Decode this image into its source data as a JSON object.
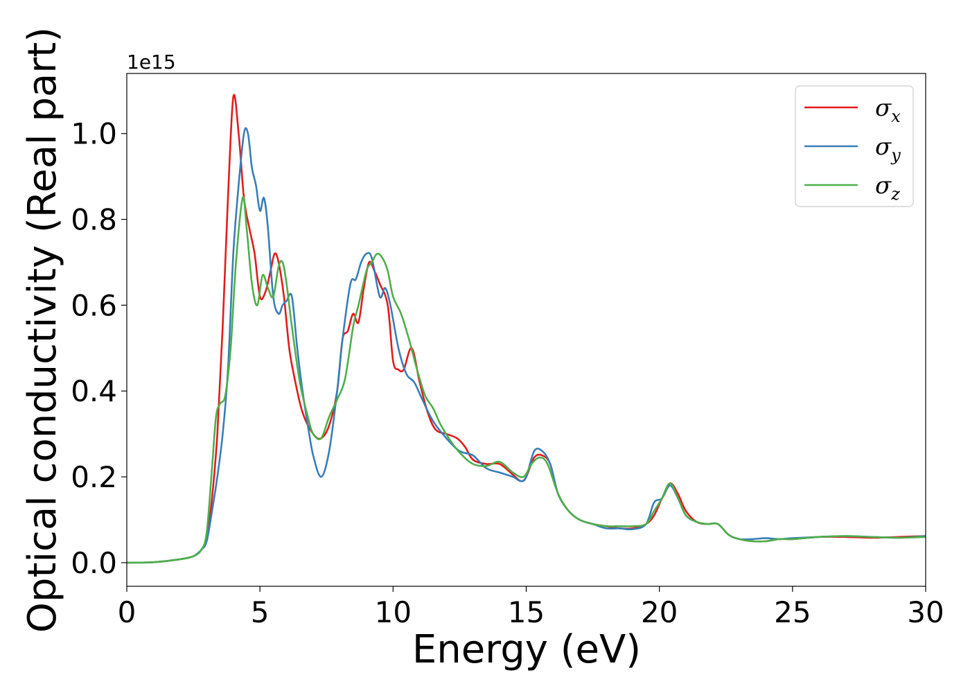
{
  "chart_data": {
    "type": "line",
    "xlabel": "Energy (eV)",
    "ylabel": "Optical conductivity (Real part)",
    "y_offset_text": "1e15",
    "xlim": [
      0,
      30
    ],
    "ylim": [
      -0.055,
      1.14
    ],
    "x_ticks": [
      0,
      5,
      10,
      15,
      20,
      25,
      30
    ],
    "x_tick_labels": [
      "0",
      "5",
      "10",
      "15",
      "20",
      "25",
      "30"
    ],
    "y_ticks": [
      0.0,
      0.2,
      0.4,
      0.6,
      0.8,
      1.0
    ],
    "y_tick_labels": [
      "0.0",
      "0.2",
      "0.4",
      "0.6",
      "0.8",
      "1.0"
    ],
    "grid": false,
    "legend_position": "top-right",
    "series": [
      {
        "name": "σx",
        "base": "σ",
        "sub": "x",
        "color": "#e41a1c",
        "points": [
          [
            0,
            0
          ],
          [
            1,
            0.001
          ],
          [
            2,
            0.008
          ],
          [
            2.5,
            0.015
          ],
          [
            2.8,
            0.03
          ],
          [
            3.0,
            0.06
          ],
          [
            3.2,
            0.15
          ],
          [
            3.4,
            0.3
          ],
          [
            3.6,
            0.55
          ],
          [
            3.8,
            0.85
          ],
          [
            4.0,
            1.085
          ],
          [
            4.2,
            1.0
          ],
          [
            4.4,
            0.85
          ],
          [
            4.6,
            0.78
          ],
          [
            4.8,
            0.72
          ],
          [
            5.0,
            0.62
          ],
          [
            5.2,
            0.63
          ],
          [
            5.4,
            0.68
          ],
          [
            5.55,
            0.72
          ],
          [
            5.7,
            0.7
          ],
          [
            5.9,
            0.62
          ],
          [
            6.1,
            0.5
          ],
          [
            6.3,
            0.43
          ],
          [
            6.6,
            0.35
          ],
          [
            7.0,
            0.3
          ],
          [
            7.3,
            0.29
          ],
          [
            7.6,
            0.32
          ],
          [
            7.9,
            0.4
          ],
          [
            8.1,
            0.52
          ],
          [
            8.3,
            0.54
          ],
          [
            8.5,
            0.58
          ],
          [
            8.7,
            0.56
          ],
          [
            8.9,
            0.64
          ],
          [
            9.1,
            0.7
          ],
          [
            9.3,
            0.68
          ],
          [
            9.5,
            0.65
          ],
          [
            9.8,
            0.6
          ],
          [
            10.0,
            0.47
          ],
          [
            10.2,
            0.45
          ],
          [
            10.4,
            0.45
          ],
          [
            10.7,
            0.5
          ],
          [
            11.0,
            0.42
          ],
          [
            11.3,
            0.35
          ],
          [
            11.6,
            0.31
          ],
          [
            12.0,
            0.3
          ],
          [
            12.4,
            0.29
          ],
          [
            12.7,
            0.27
          ],
          [
            13.0,
            0.24
          ],
          [
            13.5,
            0.23
          ],
          [
            14.0,
            0.23
          ],
          [
            14.5,
            0.205
          ],
          [
            14.8,
            0.19
          ],
          [
            15.0,
            0.2
          ],
          [
            15.3,
            0.245
          ],
          [
            15.6,
            0.25
          ],
          [
            15.9,
            0.23
          ],
          [
            16.2,
            0.16
          ],
          [
            16.6,
            0.12
          ],
          [
            17.0,
            0.1
          ],
          [
            17.5,
            0.09
          ],
          [
            18.0,
            0.085
          ],
          [
            18.5,
            0.08
          ],
          [
            19.0,
            0.08
          ],
          [
            19.5,
            0.09
          ],
          [
            19.8,
            0.11
          ],
          [
            20.1,
            0.15
          ],
          [
            20.4,
            0.185
          ],
          [
            20.7,
            0.16
          ],
          [
            21.0,
            0.12
          ],
          [
            21.4,
            0.095
          ],
          [
            21.8,
            0.09
          ],
          [
            22.2,
            0.09
          ],
          [
            22.6,
            0.065
          ],
          [
            23.0,
            0.055
          ],
          [
            23.5,
            0.05
          ],
          [
            24.0,
            0.05
          ],
          [
            24.5,
            0.055
          ],
          [
            25.0,
            0.055
          ],
          [
            26.0,
            0.06
          ],
          [
            27.0,
            0.06
          ],
          [
            28.0,
            0.058
          ],
          [
            29.0,
            0.06
          ],
          [
            30.0,
            0.062
          ]
        ]
      },
      {
        "name": "σy",
        "base": "σ",
        "sub": "y",
        "color": "#377eb8",
        "points": [
          [
            0,
            0
          ],
          [
            1,
            0.001
          ],
          [
            2,
            0.008
          ],
          [
            2.5,
            0.015
          ],
          [
            2.8,
            0.03
          ],
          [
            3.0,
            0.05
          ],
          [
            3.2,
            0.12
          ],
          [
            3.4,
            0.2
          ],
          [
            3.6,
            0.3
          ],
          [
            3.8,
            0.45
          ],
          [
            4.0,
            0.72
          ],
          [
            4.2,
            0.88
          ],
          [
            4.4,
            1.0
          ],
          [
            4.55,
            1.0
          ],
          [
            4.7,
            0.92
          ],
          [
            4.85,
            0.88
          ],
          [
            5.0,
            0.82
          ],
          [
            5.15,
            0.85
          ],
          [
            5.3,
            0.78
          ],
          [
            5.5,
            0.62
          ],
          [
            5.7,
            0.58
          ],
          [
            5.85,
            0.6
          ],
          [
            6.0,
            0.61
          ],
          [
            6.2,
            0.62
          ],
          [
            6.4,
            0.5
          ],
          [
            6.6,
            0.4
          ],
          [
            6.8,
            0.32
          ],
          [
            7.0,
            0.25
          ],
          [
            7.3,
            0.2
          ],
          [
            7.6,
            0.26
          ],
          [
            7.9,
            0.4
          ],
          [
            8.1,
            0.52
          ],
          [
            8.4,
            0.65
          ],
          [
            8.6,
            0.66
          ],
          [
            8.8,
            0.7
          ],
          [
            9.0,
            0.72
          ],
          [
            9.2,
            0.71
          ],
          [
            9.5,
            0.62
          ],
          [
            9.7,
            0.64
          ],
          [
            9.9,
            0.6
          ],
          [
            10.2,
            0.5
          ],
          [
            10.5,
            0.44
          ],
          [
            10.8,
            0.42
          ],
          [
            11.1,
            0.38
          ],
          [
            11.5,
            0.33
          ],
          [
            12.0,
            0.29
          ],
          [
            12.5,
            0.26
          ],
          [
            13.0,
            0.25
          ],
          [
            13.5,
            0.22
          ],
          [
            14.0,
            0.21
          ],
          [
            14.5,
            0.2
          ],
          [
            14.8,
            0.19
          ],
          [
            15.0,
            0.2
          ],
          [
            15.3,
            0.26
          ],
          [
            15.6,
            0.26
          ],
          [
            15.9,
            0.23
          ],
          [
            16.2,
            0.16
          ],
          [
            16.6,
            0.12
          ],
          [
            17.0,
            0.1
          ],
          [
            17.5,
            0.09
          ],
          [
            18.0,
            0.08
          ],
          [
            18.5,
            0.08
          ],
          [
            19.0,
            0.078
          ],
          [
            19.5,
            0.09
          ],
          [
            19.8,
            0.14
          ],
          [
            20.1,
            0.15
          ],
          [
            20.4,
            0.18
          ],
          [
            20.7,
            0.15
          ],
          [
            21.0,
            0.11
          ],
          [
            21.4,
            0.095
          ],
          [
            21.8,
            0.09
          ],
          [
            22.2,
            0.09
          ],
          [
            22.6,
            0.065
          ],
          [
            23.0,
            0.055
          ],
          [
            23.5,
            0.055
          ],
          [
            24.0,
            0.057
          ],
          [
            24.5,
            0.055
          ],
          [
            25.0,
            0.057
          ],
          [
            26.0,
            0.06
          ],
          [
            27.0,
            0.062
          ],
          [
            28.0,
            0.06
          ],
          [
            29.0,
            0.058
          ],
          [
            30.0,
            0.062
          ]
        ]
      },
      {
        "name": "σz",
        "base": "σ",
        "sub": "z",
        "color": "#4daf4a",
        "points": [
          [
            0,
            0
          ],
          [
            1,
            0.001
          ],
          [
            2,
            0.008
          ],
          [
            2.5,
            0.015
          ],
          [
            2.8,
            0.03
          ],
          [
            3.0,
            0.07
          ],
          [
            3.2,
            0.22
          ],
          [
            3.35,
            0.34
          ],
          [
            3.5,
            0.37
          ],
          [
            3.7,
            0.39
          ],
          [
            3.9,
            0.5
          ],
          [
            4.1,
            0.7
          ],
          [
            4.35,
            0.85
          ],
          [
            4.5,
            0.78
          ],
          [
            4.7,
            0.65
          ],
          [
            4.9,
            0.6
          ],
          [
            5.1,
            0.67
          ],
          [
            5.3,
            0.64
          ],
          [
            5.5,
            0.62
          ],
          [
            5.7,
            0.69
          ],
          [
            5.85,
            0.7
          ],
          [
            6.0,
            0.65
          ],
          [
            6.2,
            0.55
          ],
          [
            6.5,
            0.42
          ],
          [
            6.8,
            0.34
          ],
          [
            7.0,
            0.3
          ],
          [
            7.3,
            0.29
          ],
          [
            7.6,
            0.34
          ],
          [
            7.9,
            0.38
          ],
          [
            8.2,
            0.43
          ],
          [
            8.5,
            0.55
          ],
          [
            8.7,
            0.6
          ],
          [
            9.0,
            0.68
          ],
          [
            9.2,
            0.7
          ],
          [
            9.4,
            0.72
          ],
          [
            9.6,
            0.71
          ],
          [
            9.8,
            0.68
          ],
          [
            10.0,
            0.62
          ],
          [
            10.3,
            0.58
          ],
          [
            10.6,
            0.52
          ],
          [
            10.9,
            0.45
          ],
          [
            11.2,
            0.39
          ],
          [
            11.5,
            0.36
          ],
          [
            11.8,
            0.32
          ],
          [
            12.2,
            0.28
          ],
          [
            12.6,
            0.25
          ],
          [
            13.0,
            0.23
          ],
          [
            13.5,
            0.225
          ],
          [
            14.0,
            0.235
          ],
          [
            14.5,
            0.21
          ],
          [
            14.9,
            0.2
          ],
          [
            15.2,
            0.23
          ],
          [
            15.5,
            0.245
          ],
          [
            15.8,
            0.23
          ],
          [
            16.2,
            0.16
          ],
          [
            16.6,
            0.12
          ],
          [
            17.0,
            0.1
          ],
          [
            17.5,
            0.09
          ],
          [
            18.0,
            0.085
          ],
          [
            18.5,
            0.085
          ],
          [
            19.0,
            0.085
          ],
          [
            19.5,
            0.09
          ],
          [
            19.8,
            0.12
          ],
          [
            20.1,
            0.15
          ],
          [
            20.4,
            0.185
          ],
          [
            20.7,
            0.15
          ],
          [
            21.0,
            0.11
          ],
          [
            21.4,
            0.095
          ],
          [
            21.8,
            0.09
          ],
          [
            22.2,
            0.09
          ],
          [
            22.6,
            0.065
          ],
          [
            23.0,
            0.055
          ],
          [
            23.5,
            0.05
          ],
          [
            24.0,
            0.05
          ],
          [
            24.5,
            0.055
          ],
          [
            25.0,
            0.055
          ],
          [
            26.0,
            0.06
          ],
          [
            27.0,
            0.062
          ],
          [
            28.0,
            0.06
          ],
          [
            29.0,
            0.058
          ],
          [
            30.0,
            0.06
          ]
        ]
      }
    ]
  }
}
